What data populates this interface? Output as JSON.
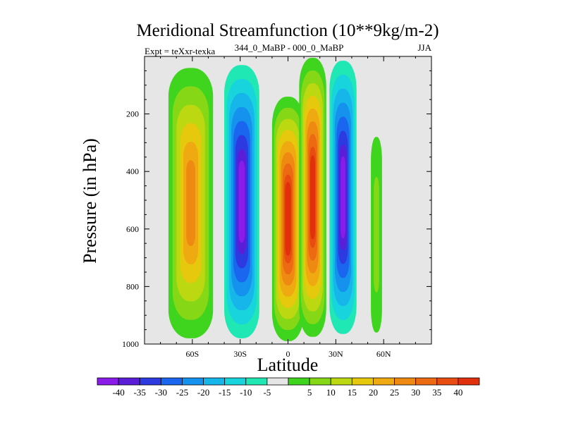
{
  "chart_data": {
    "type": "heatmap",
    "title": "Meridional Streamfunction (10**9kg/m-2)",
    "subtitle_left": "Expt = teXxr-texka",
    "subtitle_center": "344_0_MaBP - 000_0_MaBP",
    "subtitle_right": "JJA",
    "xlabel": "Latitude",
    "ylabel": "Pressure (in hPa)",
    "xlim": [
      -90,
      90
    ],
    "ylim": [
      1000,
      0
    ],
    "x_ticks": [
      {
        "value": -60,
        "label": "60S"
      },
      {
        "value": -30,
        "label": "30S"
      },
      {
        "value": 0,
        "label": "0"
      },
      {
        "value": 30,
        "label": "30N"
      },
      {
        "value": 60,
        "label": "60N"
      }
    ],
    "y_ticks": [
      {
        "value": 200,
        "label": "200"
      },
      {
        "value": 400,
        "label": "400"
      },
      {
        "value": 600,
        "label": "600"
      },
      {
        "value": 800,
        "label": "800"
      },
      {
        "value": 1000,
        "label": "1000"
      }
    ],
    "missing_color": "#e6e6e6",
    "colorbar": {
      "colors": [
        "#8a1be8",
        "#5a1ed8",
        "#2c3ae0",
        "#1a66ee",
        "#1592ee",
        "#16b6ea",
        "#18d4dc",
        "#20e8b4",
        "#e6e6e6",
        "#3fd41e",
        "#86d816",
        "#bcd810",
        "#e6c80c",
        "#eeaa10",
        "#ee8a12",
        "#ec6a12",
        "#e84c10",
        "#e0300c"
      ],
      "labels": [
        "-40",
        "-35",
        "-30",
        "-25",
        "-20",
        "-15",
        "-10",
        "-5",
        "5",
        "10",
        "15",
        "20",
        "25",
        "30",
        "35",
        "40"
      ]
    },
    "features": [
      {
        "name": "positive-cell-sh-midlat",
        "type": "positive",
        "lat": [
          -75,
          -47
        ],
        "p": [
          40,
          980
        ],
        "peak": 30
      },
      {
        "name": "negative-cell-sh-subtropics",
        "type": "negative",
        "lat": [
          -40,
          -18
        ],
        "p": [
          30,
          980
        ],
        "peak": -40
      },
      {
        "name": "positive-cell-equatorial",
        "type": "positive",
        "lat": [
          -10,
          10
        ],
        "p": [
          140,
          990
        ],
        "peak": 60
      },
      {
        "name": "positive-cell-nh-tropics",
        "type": "positive",
        "lat": [
          7,
          24
        ],
        "p": [
          5,
          975
        ],
        "peak": 60
      },
      {
        "name": "negative-cell-nh-subtropics",
        "type": "negative",
        "lat": [
          26,
          43
        ],
        "p": [
          15,
          965
        ],
        "peak": -40
      },
      {
        "name": "positive-cell-nh-midlat",
        "type": "positive",
        "lat": [
          52,
          59
        ],
        "p": [
          280,
          960
        ],
        "peak": 10
      }
    ]
  }
}
